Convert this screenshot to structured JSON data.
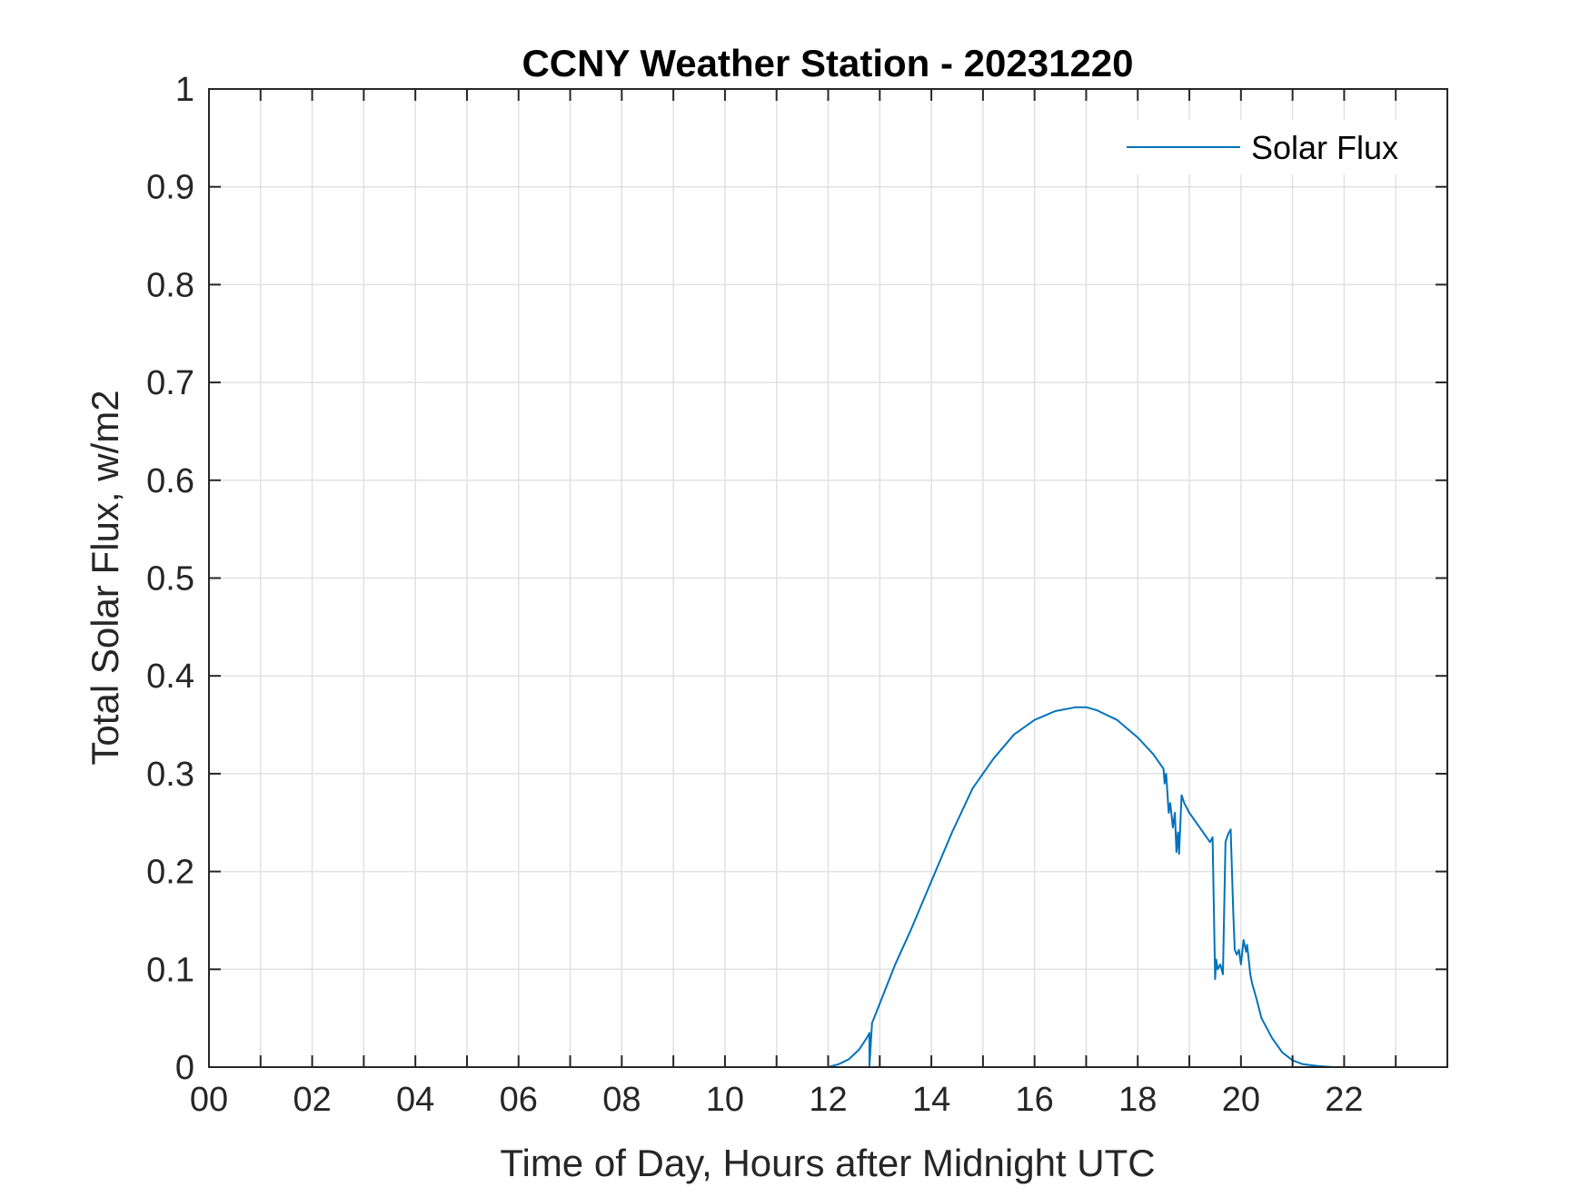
{
  "chart_data": {
    "type": "line",
    "title": "CCNY Weather Station - 20231220",
    "xlabel": "Time of Day, Hours after Midnight UTC",
    "ylabel": "Total Solar Flux, w/m2",
    "xlim": [
      0,
      24
    ],
    "ylim": [
      0,
      1
    ],
    "x_ticks": [
      0,
      2,
      4,
      6,
      8,
      10,
      12,
      14,
      16,
      18,
      20,
      22
    ],
    "x_tick_labels": [
      "00",
      "02",
      "04",
      "06",
      "08",
      "10",
      "12",
      "14",
      "16",
      "18",
      "20",
      "22"
    ],
    "y_ticks": [
      0,
      0.1,
      0.2,
      0.3,
      0.4,
      0.5,
      0.6,
      0.7,
      0.8,
      0.9,
      1
    ],
    "y_tick_labels": [
      "0",
      "0.1",
      "0.2",
      "0.3",
      "0.4",
      "0.5",
      "0.6",
      "0.7",
      "0.8",
      "0.9",
      "1"
    ],
    "grid": true,
    "legend_position": "top-right",
    "series": [
      {
        "name": "Solar Flux",
        "color": "#0072BD",
        "x": [
          0,
          12.0,
          12.2,
          12.4,
          12.6,
          12.75,
          12.8,
          12.8,
          12.85,
          13.0,
          13.3,
          13.6,
          14.0,
          14.4,
          14.8,
          15.2,
          15.6,
          16.0,
          16.4,
          16.8,
          17.0,
          17.2,
          17.6,
          18.0,
          18.3,
          18.5,
          18.52,
          18.55,
          18.6,
          18.63,
          18.68,
          18.72,
          18.75,
          18.78,
          18.8,
          18.85,
          18.9,
          19.0,
          19.2,
          19.4,
          19.45,
          19.5,
          19.52,
          19.55,
          19.6,
          19.65,
          19.7,
          19.75,
          19.8,
          19.85,
          19.88,
          19.92,
          19.96,
          20.0,
          20.05,
          20.1,
          20.12,
          20.15,
          20.18,
          20.22,
          20.3,
          20.4,
          20.6,
          20.8,
          21.0,
          21.2,
          21.5,
          21.8,
          22.0,
          24.0
        ],
        "y": [
          0,
          0,
          0.003,
          0.008,
          0.018,
          0.03,
          0.035,
          0,
          0.045,
          0.065,
          0.105,
          0.14,
          0.19,
          0.24,
          0.285,
          0.315,
          0.34,
          0.355,
          0.364,
          0.368,
          0.368,
          0.365,
          0.355,
          0.337,
          0.32,
          0.305,
          0.29,
          0.3,
          0.26,
          0.27,
          0.245,
          0.26,
          0.22,
          0.24,
          0.218,
          0.278,
          0.27,
          0.26,
          0.245,
          0.23,
          0.235,
          0.09,
          0.11,
          0.1,
          0.105,
          0.095,
          0.23,
          0.238,
          0.243,
          0.16,
          0.12,
          0.115,
          0.12,
          0.105,
          0.13,
          0.118,
          0.125,
          0.11,
          0.095,
          0.085,
          0.07,
          0.05,
          0.03,
          0.015,
          0.007,
          0.003,
          0.001,
          0,
          0,
          0
        ]
      }
    ]
  }
}
